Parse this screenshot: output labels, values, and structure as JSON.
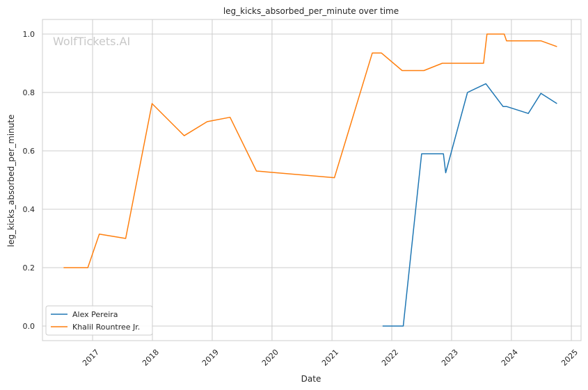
{
  "chart_data": {
    "type": "line",
    "title": "leg_kicks_absorbed_per_minute over time",
    "xlabel": "Date",
    "ylabel": "leg_kicks_absorbed_per_minute",
    "watermark": "WolfTickets.AI",
    "xlim": [
      "2016-03-01",
      "2025-03-01"
    ],
    "ylim": [
      -0.05,
      1.05
    ],
    "x_ticks": [
      "2017-01-01",
      "2018-01-01",
      "2019-01-01",
      "2020-01-01",
      "2021-01-01",
      "2022-01-01",
      "2023-01-01",
      "2024-01-01",
      "2025-01-01"
    ],
    "x_tick_labels": [
      "2017",
      "2018",
      "2019",
      "2020",
      "2021",
      "2022",
      "2023",
      "2024",
      "2025"
    ],
    "y_ticks": [
      0.0,
      0.2,
      0.4,
      0.6,
      0.8,
      1.0
    ],
    "y_tick_labels": [
      "0.0",
      "0.2",
      "0.4",
      "0.6",
      "0.8",
      "1.0"
    ],
    "grid": true,
    "legend_position": "lower-left",
    "series": [
      {
        "name": "Alex Pereira",
        "color": "#1f77b4",
        "x": [
          "2021-11-06",
          "2022-03-12",
          "2022-07-02",
          "2022-11-12",
          "2022-11-26",
          "2023-04-08",
          "2023-07-29",
          "2023-11-11",
          "2023-12-02",
          "2024-04-13",
          "2024-06-29",
          "2024-10-05"
        ],
        "y": [
          0.0,
          0.0,
          0.59,
          0.59,
          0.525,
          0.8,
          0.83,
          0.752,
          0.752,
          0.728,
          0.797,
          0.762
        ]
      },
      {
        "name": "Khalil Rountree Jr.",
        "color": "#ff7f0e",
        "x": [
          "2016-07-08",
          "2016-12-03",
          "2017-02-11",
          "2017-07-22",
          "2017-12-30",
          "2018-07-14",
          "2018-12-01",
          "2019-04-20",
          "2019-09-28",
          "2021-01-16",
          "2021-09-04",
          "2021-10-30",
          "2022-03-05",
          "2022-07-16",
          "2022-11-05",
          "2023-07-15",
          "2023-08-05",
          "2023-11-18",
          "2023-12-02",
          "2024-06-29",
          "2024-10-05"
        ],
        "y": [
          0.2,
          0.2,
          0.315,
          0.3,
          0.762,
          0.652,
          0.7,
          0.715,
          0.531,
          0.508,
          0.935,
          0.935,
          0.875,
          0.875,
          0.9,
          0.9,
          1.0,
          1.0,
          0.977,
          0.977,
          0.957
        ]
      }
    ]
  }
}
